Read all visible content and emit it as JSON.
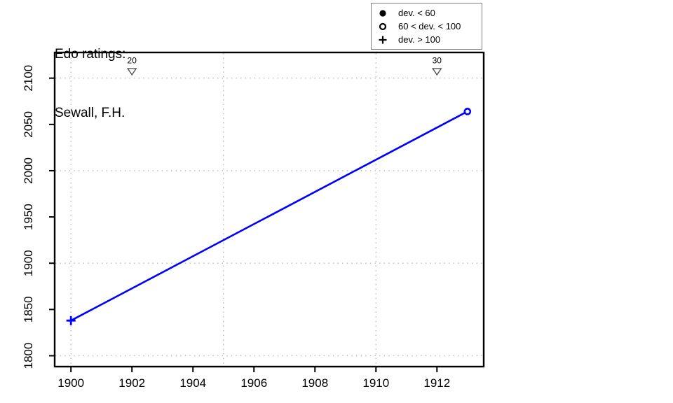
{
  "chart_data": {
    "type": "line",
    "title": "Edo ratings:",
    "subtitle": "Sewall, F.H.",
    "xlabel": "",
    "ylabel": "",
    "xlim": [
      1899.49,
      1913.51
    ],
    "ylim": [
      1789,
      2127
    ],
    "x_ticks": [
      1900,
      1902,
      1904,
      1906,
      1908,
      1910,
      1912
    ],
    "y_ticks": [
      1800,
      1850,
      1900,
      1950,
      2000,
      2050,
      2100
    ],
    "x_gridlines": [
      1900,
      1905,
      1910
    ],
    "y_gridlines": [
      1800,
      1900,
      2000,
      2100
    ],
    "grid": "dotted",
    "series": [
      {
        "name": "Edo rating",
        "points": [
          {
            "x": 1900,
            "y": 1838,
            "marker": "plus"
          },
          {
            "x": 1913,
            "y": 2064,
            "marker": "open-circle"
          }
        ]
      }
    ],
    "deviation_markers": [
      {
        "x": 1902,
        "y": 2107,
        "label": "20",
        "symbol": "triangle-down"
      },
      {
        "x": 1912,
        "y": 2107,
        "label": "30",
        "symbol": "triangle-down"
      }
    ],
    "legend": {
      "position": "top-right",
      "items": [
        {
          "symbol": "filled-circle",
          "label": "dev. < 60"
        },
        {
          "symbol": "open-circle",
          "label": "60 < dev. < 100"
        },
        {
          "symbol": "plus",
          "label": "dev. > 100"
        }
      ]
    },
    "colors": {
      "line": "#0000ff",
      "grid": "#b5b5b5",
      "axis": "#000000",
      "triangle": "#555555",
      "legend_border": "#808080",
      "text": "#000000"
    }
  }
}
